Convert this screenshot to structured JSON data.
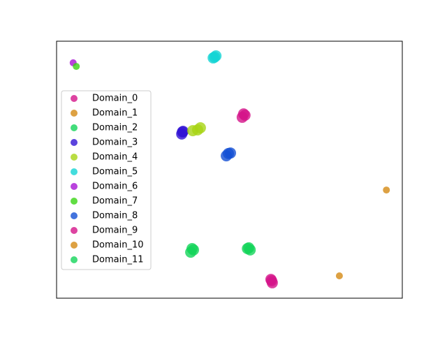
{
  "chart_data": {
    "type": "scatter",
    "legend": "center left",
    "xlim": [
      0,
      100
    ],
    "ylim": [
      0,
      100
    ],
    "series": [
      {
        "name": "Domain_0",
        "color": "#d4148a",
        "x": [
          53.7,
          54.5,
          54.1
        ],
        "values": [
          70.4,
          71.2,
          71.7
        ]
      },
      {
        "name": "Domain_1",
        "color": "#d48a14",
        "x": [
          95.4
        ],
        "values": [
          42.1
        ]
      },
      {
        "name": "Domain_2",
        "color": "#14d45a",
        "x": [
          38.8,
          39.6,
          39.2
        ],
        "values": [
          17.9,
          18.8,
          19.3
        ]
      },
      {
        "name": "Domain_3",
        "color": "#3214d4",
        "x": [
          36.2,
          36.6,
          36.4
        ],
        "values": [
          63.9,
          64.9,
          64.7
        ]
      },
      {
        "name": "Domain_4",
        "color": "#a8d414",
        "x": [
          39.4,
          40.8,
          41.6
        ],
        "values": [
          65.2,
          65.5,
          66.3
        ]
      },
      {
        "name": "Domain_5",
        "color": "#14d4d4",
        "x": [
          45.3,
          46.1,
          45.7
        ],
        "values": [
          93.5,
          94.3,
          93.8
        ]
      },
      {
        "name": "Domain_6",
        "color": "#a814d4",
        "x": [
          4.8
        ],
        "values": [
          91.6
        ]
      },
      {
        "name": "Domain_7",
        "color": "#3ad414",
        "x": [
          5.7
        ],
        "values": [
          90.2
        ]
      },
      {
        "name": "Domain_8",
        "color": "#1450d4",
        "x": [
          49.1,
          50.3,
          49.7
        ],
        "values": [
          55.4,
          56.5,
          56.3
        ]
      },
      {
        "name": "Domain_9",
        "color": "#d4148a",
        "x": [
          62.0,
          62.4,
          62.2
        ],
        "values": [
          7.3,
          6.0,
          6.8
        ]
      },
      {
        "name": "Domain_10",
        "color": "#d48a14",
        "x": [
          81.8
        ],
        "values": [
          8.7
        ]
      },
      {
        "name": "Domain_11",
        "color": "#14d45a",
        "x": [
          55.2,
          56.0,
          55.6
        ],
        "values": [
          19.3,
          18.8,
          19.6
        ]
      }
    ]
  }
}
